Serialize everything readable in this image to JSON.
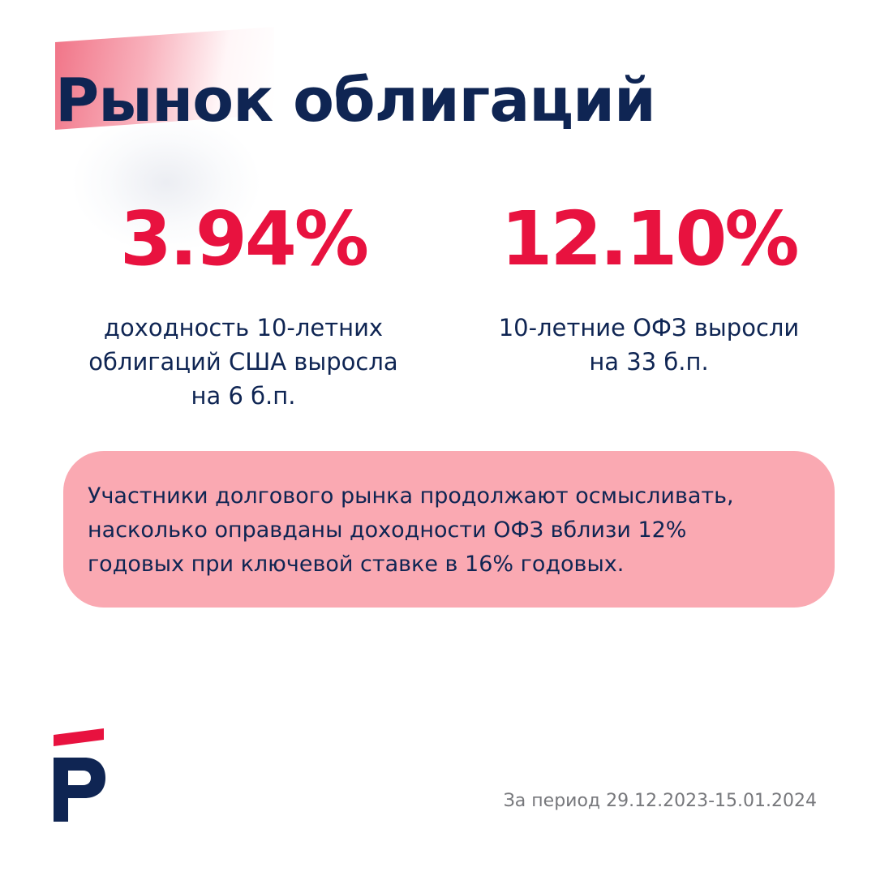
{
  "title": "Рынок облигаций",
  "stats": [
    {
      "value": "3.94%",
      "description_lines": [
        "доходность 10-летних",
        "облигаций США выросла",
        "на 6 б.п."
      ]
    },
    {
      "value": "12.10%",
      "description_lines": [
        "10-летние ОФЗ выросли",
        "на 33 б.п."
      ]
    }
  ],
  "callout": {
    "lines": [
      "Участники долгового рынка продолжают осмысливать,",
      "насколько оправданы доходности ОФЗ вблизи 12%",
      "годовых при ключевой ставке в 16% годовых."
    ]
  },
  "period": "За период 29.12.2023-15.01.2024",
  "logo": {
    "icon": "brand-logo-icon"
  },
  "colors": {
    "accent_red": "#e8123f",
    "navy": "#0f2553",
    "callout_bg": "#faa9b2",
    "muted_gray": "#77787c"
  }
}
